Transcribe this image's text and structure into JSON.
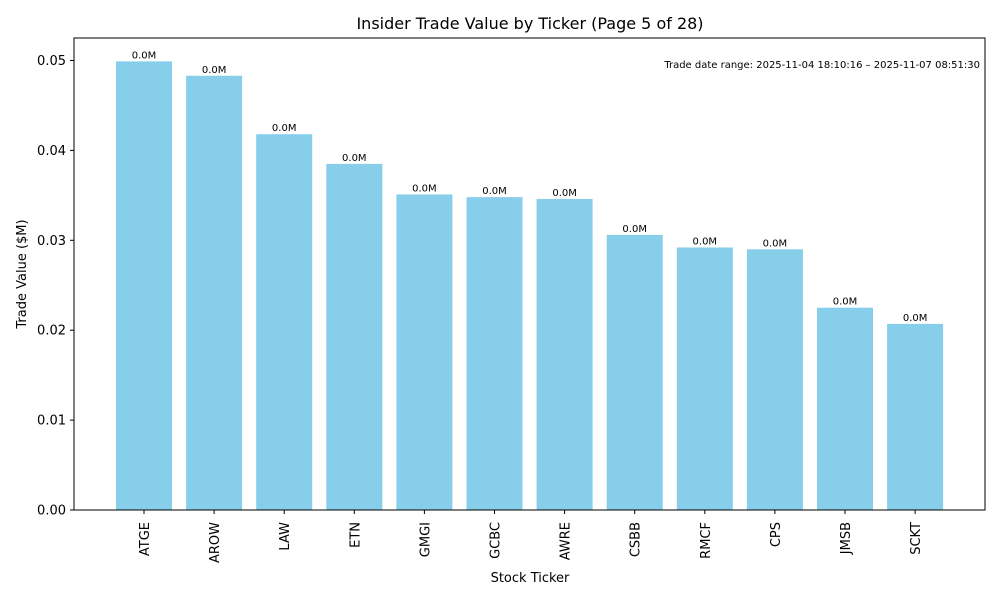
{
  "chart_data": {
    "type": "bar",
    "title": "Insider Trade Value by Ticker (Page 5 of 28)",
    "xlabel": "Stock Ticker",
    "ylabel": "Trade Value ($M)",
    "categories": [
      "ATGE",
      "AROW",
      "LAW",
      "ETN",
      "GMGI",
      "GCBC",
      "AWRE",
      "CSBB",
      "RMCF",
      "CPS",
      "JMSB",
      "SCKT"
    ],
    "values": [
      0.0499,
      0.0483,
      0.0418,
      0.0385,
      0.0351,
      0.0348,
      0.0346,
      0.0306,
      0.0292,
      0.029,
      0.0225,
      0.0207
    ],
    "data_labels": [
      "0.0M",
      "0.0M",
      "0.0M",
      "0.0M",
      "0.0M",
      "0.0M",
      "0.0M",
      "0.0M",
      "0.0M",
      "0.0M",
      "0.0M",
      "0.0M"
    ],
    "ylim": [
      0,
      0.0525
    ],
    "yticks": [
      0.0,
      0.01,
      0.02,
      0.03,
      0.04,
      0.05
    ],
    "ytick_labels": [
      "0.00",
      "0.01",
      "0.02",
      "0.03",
      "0.04",
      "0.05"
    ],
    "grid": false,
    "bar_color": "#87CEEB",
    "annotation": "Trade date range: 2025-11-04 18:10:16 – 2025-11-07 08:51:30"
  }
}
